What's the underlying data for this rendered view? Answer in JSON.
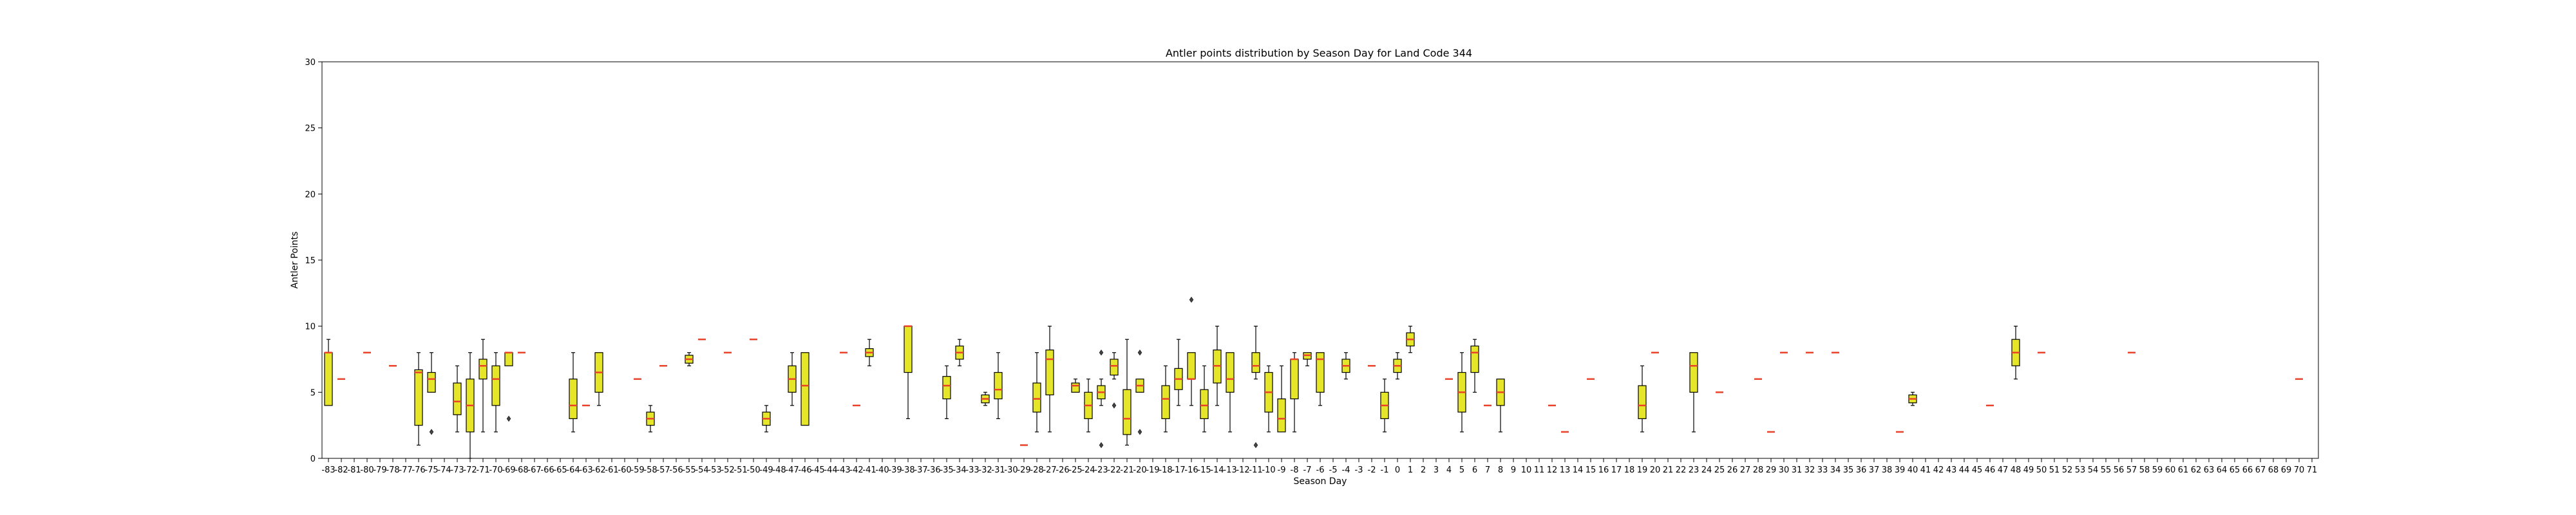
{
  "chart_data": {
    "type": "box",
    "title": "Antler points distribution by Season Day for Land Code 344",
    "xlabel": "Season Day",
    "ylabel": "Antler Points",
    "ylim": [
      0,
      30
    ],
    "yticks": [
      0,
      5,
      10,
      15,
      20,
      25,
      30
    ],
    "grid": false,
    "box_color": "#e5e52a",
    "median_color": "#e8432a",
    "outline_color": "#000000",
    "categories": [
      "-83",
      "-82",
      "-81",
      "-80",
      "-79",
      "-78",
      "-77",
      "-76",
      "-75",
      "-74",
      "-73",
      "-72",
      "-71",
      "-70",
      "-69",
      "-68",
      "-67",
      "-66",
      "-65",
      "-64",
      "-63",
      "-62",
      "-61",
      "-60",
      "-59",
      "-58",
      "-57",
      "-56",
      "-55",
      "-54",
      "-53",
      "-52",
      "-51",
      "-50",
      "-49",
      "-48",
      "-47",
      "-46",
      "-45",
      "-44",
      "-43",
      "-42",
      "-41",
      "-40",
      "-39",
      "-38",
      "-37",
      "-36",
      "-35",
      "-34",
      "-33",
      "-32",
      "-31",
      "-30",
      "-29",
      "-28",
      "-27",
      "-26",
      "-25",
      "-24",
      "-23",
      "-22",
      "-21",
      "-20",
      "-19",
      "-18",
      "-17",
      "-16",
      "-15",
      "-14",
      "-13",
      "-12",
      "-11",
      "-10",
      "-9",
      "-8",
      "-7",
      "-6",
      "-5",
      "-4",
      "-3",
      "-2",
      "-1",
      "0",
      "1",
      "2",
      "3",
      "4",
      "5",
      "6",
      "7",
      "8",
      "9",
      "10",
      "11",
      "12",
      "13",
      "14",
      "15",
      "16",
      "17",
      "18",
      "19",
      "20",
      "21",
      "22",
      "23",
      "24",
      "25",
      "26",
      "27",
      "28",
      "29",
      "30",
      "31",
      "32",
      "33",
      "34",
      "35",
      "36",
      "37",
      "38",
      "39",
      "40",
      "41",
      "42",
      "43",
      "44",
      "45",
      "46",
      "47",
      "48",
      "49",
      "50",
      "51",
      "52",
      "53",
      "54",
      "55",
      "56",
      "57",
      "58",
      "59",
      "60",
      "61",
      "62",
      "63",
      "64",
      "65",
      "66",
      "67",
      "68",
      "69",
      "70",
      "71"
    ],
    "boxes": [
      {
        "x": "-83",
        "q1": 4,
        "median": 8,
        "q3": 8,
        "whislo": 4,
        "whishi": 9,
        "fliers": []
      },
      {
        "x": "-82",
        "q1": 6,
        "median": 6,
        "q3": 6,
        "whislo": 6,
        "whishi": 6,
        "fliers": []
      },
      {
        "x": "-80",
        "q1": 8,
        "median": 8,
        "q3": 8,
        "whislo": 8,
        "whishi": 8,
        "fliers": []
      },
      {
        "x": "-78",
        "q1": 7,
        "median": 7,
        "q3": 7,
        "whislo": 7,
        "whishi": 7,
        "fliers": []
      },
      {
        "x": "-76",
        "q1": 2.5,
        "median": 6.5,
        "q3": 6.7,
        "whislo": 1,
        "whishi": 8,
        "fliers": []
      },
      {
        "x": "-75",
        "q1": 5,
        "median": 6,
        "q3": 6.5,
        "whislo": 5,
        "whishi": 8,
        "fliers": [
          2
        ]
      },
      {
        "x": "-73",
        "q1": 3.3,
        "median": 4.3,
        "q3": 5.7,
        "whislo": 2,
        "whishi": 7,
        "fliers": []
      },
      {
        "x": "-72",
        "q1": 2,
        "median": 4,
        "q3": 6,
        "whislo": 0,
        "whishi": 8,
        "fliers": []
      },
      {
        "x": "-71",
        "q1": 6,
        "median": 7,
        "q3": 7.5,
        "whislo": 2,
        "whishi": 9,
        "fliers": []
      },
      {
        "x": "-70",
        "q1": 4,
        "median": 6,
        "q3": 7,
        "whislo": 2,
        "whishi": 8,
        "fliers": []
      },
      {
        "x": "-69",
        "q1": 7,
        "median": 8,
        "q3": 8,
        "whislo": 7,
        "whishi": 8,
        "fliers": [
          3
        ]
      },
      {
        "x": "-68",
        "q1": 8,
        "median": 8,
        "q3": 8,
        "whislo": 8,
        "whishi": 8,
        "fliers": []
      },
      {
        "x": "-64",
        "q1": 3,
        "median": 4,
        "q3": 6,
        "whislo": 2,
        "whishi": 8,
        "fliers": []
      },
      {
        "x": "-63",
        "q1": 4,
        "median": 4,
        "q3": 4,
        "whislo": 4,
        "whishi": 4,
        "fliers": []
      },
      {
        "x": "-62",
        "q1": 5,
        "median": 6.5,
        "q3": 8,
        "whislo": 4,
        "whishi": 8,
        "fliers": []
      },
      {
        "x": "-59",
        "q1": 6,
        "median": 6,
        "q3": 6,
        "whislo": 6,
        "whishi": 6,
        "fliers": []
      },
      {
        "x": "-58",
        "q1": 2.5,
        "median": 3,
        "q3": 3.5,
        "whislo": 2,
        "whishi": 4,
        "fliers": []
      },
      {
        "x": "-57",
        "q1": 7,
        "median": 7,
        "q3": 7,
        "whislo": 7,
        "whishi": 7,
        "fliers": []
      },
      {
        "x": "-55",
        "q1": 7.2,
        "median": 7.5,
        "q3": 7.8,
        "whislo": 7,
        "whishi": 8,
        "fliers": []
      },
      {
        "x": "-54",
        "q1": 9,
        "median": 9,
        "q3": 9,
        "whislo": 9,
        "whishi": 9,
        "fliers": []
      },
      {
        "x": "-52",
        "q1": 8,
        "median": 8,
        "q3": 8,
        "whislo": 8,
        "whishi": 8,
        "fliers": []
      },
      {
        "x": "-50",
        "q1": 9,
        "median": 9,
        "q3": 9,
        "whislo": 9,
        "whishi": 9,
        "fliers": []
      },
      {
        "x": "-49",
        "q1": 2.5,
        "median": 3,
        "q3": 3.5,
        "whislo": 2,
        "whishi": 4,
        "fliers": []
      },
      {
        "x": "-47",
        "q1": 5,
        "median": 6,
        "q3": 7,
        "whislo": 4,
        "whishi": 8,
        "fliers": []
      },
      {
        "x": "-46",
        "q1": 2.5,
        "median": 5.5,
        "q3": 8,
        "whislo": 2.5,
        "whishi": 8,
        "fliers": []
      },
      {
        "x": "-43",
        "q1": 8,
        "median": 8,
        "q3": 8,
        "whislo": 8,
        "whishi": 8,
        "fliers": []
      },
      {
        "x": "-42",
        "q1": 4,
        "median": 4,
        "q3": 4,
        "whislo": 4,
        "whishi": 4,
        "fliers": []
      },
      {
        "x": "-41",
        "q1": 7.7,
        "median": 8,
        "q3": 8.3,
        "whislo": 7,
        "whishi": 9,
        "fliers": []
      },
      {
        "x": "-38",
        "q1": 6.5,
        "median": 10,
        "q3": 10,
        "whislo": 3,
        "whishi": 10,
        "fliers": []
      },
      {
        "x": "-35",
        "q1": 4.5,
        "median": 5.5,
        "q3": 6.2,
        "whislo": 3,
        "whishi": 7,
        "fliers": []
      },
      {
        "x": "-34",
        "q1": 7.5,
        "median": 8,
        "q3": 8.5,
        "whislo": 7,
        "whishi": 9,
        "fliers": []
      },
      {
        "x": "-32",
        "q1": 4.2,
        "median": 4.5,
        "q3": 4.8,
        "whislo": 4,
        "whishi": 5,
        "fliers": []
      },
      {
        "x": "-31",
        "q1": 4.5,
        "median": 5.2,
        "q3": 6.5,
        "whislo": 3,
        "whishi": 8,
        "fliers": []
      },
      {
        "x": "-29",
        "q1": 1,
        "median": 1,
        "q3": 1,
        "whislo": 1,
        "whishi": 1,
        "fliers": []
      },
      {
        "x": "-28",
        "q1": 3.5,
        "median": 4.5,
        "q3": 5.7,
        "whislo": 2,
        "whishi": 8,
        "fliers": []
      },
      {
        "x": "-27",
        "q1": 4.8,
        "median": 7.5,
        "q3": 8.2,
        "whislo": 2,
        "whishi": 10,
        "fliers": []
      },
      {
        "x": "-25",
        "q1": 5,
        "median": 5.5,
        "q3": 5.7,
        "whislo": 5,
        "whishi": 6,
        "fliers": []
      },
      {
        "x": "-24",
        "q1": 3,
        "median": 4,
        "q3": 5,
        "whislo": 2,
        "whishi": 6,
        "fliers": []
      },
      {
        "x": "-23",
        "q1": 4.5,
        "median": 5,
        "q3": 5.5,
        "whislo": 4,
        "whishi": 6,
        "fliers": [
          8,
          1
        ]
      },
      {
        "x": "-22",
        "q1": 6.3,
        "median": 7,
        "q3": 7.5,
        "whislo": 6,
        "whishi": 8,
        "fliers": [
          4
        ]
      },
      {
        "x": "-21",
        "q1": 1.8,
        "median": 3,
        "q3": 5.2,
        "whislo": 1,
        "whishi": 9,
        "fliers": []
      },
      {
        "x": "-20",
        "q1": 5,
        "median": 5.5,
        "q3": 6,
        "whislo": 5,
        "whishi": 6,
        "fliers": [
          8,
          2
        ]
      },
      {
        "x": "-18",
        "q1": 3,
        "median": 4.5,
        "q3": 5.5,
        "whislo": 2,
        "whishi": 7,
        "fliers": []
      },
      {
        "x": "-17",
        "q1": 5.2,
        "median": 6,
        "q3": 6.8,
        "whislo": 4,
        "whishi": 9,
        "fliers": []
      },
      {
        "x": "-16",
        "q1": 6,
        "median": 6,
        "q3": 8,
        "whislo": 4,
        "whishi": 8,
        "fliers": [
          12
        ]
      },
      {
        "x": "-15",
        "q1": 3,
        "median": 4,
        "q3": 5.2,
        "whislo": 2,
        "whishi": 7,
        "fliers": []
      },
      {
        "x": "-14",
        "q1": 5.7,
        "median": 7,
        "q3": 8.2,
        "whislo": 4,
        "whishi": 10,
        "fliers": []
      },
      {
        "x": "-13",
        "q1": 5,
        "median": 6,
        "q3": 8,
        "whislo": 2,
        "whishi": 8,
        "fliers": []
      },
      {
        "x": "-11",
        "q1": 6.5,
        "median": 7,
        "q3": 8,
        "whislo": 6,
        "whishi": 10,
        "fliers": [
          1
        ]
      },
      {
        "x": "-10",
        "q1": 3.5,
        "median": 5,
        "q3": 6.5,
        "whislo": 2,
        "whishi": 7,
        "fliers": []
      },
      {
        "x": "-9",
        "q1": 2,
        "median": 3,
        "q3": 4.5,
        "whislo": 2,
        "whishi": 7,
        "fliers": []
      },
      {
        "x": "-8",
        "q1": 4.5,
        "median": 7.5,
        "q3": 7.5,
        "whislo": 2,
        "whishi": 8,
        "fliers": []
      },
      {
        "x": "-7",
        "q1": 7.5,
        "median": 7.8,
        "q3": 8,
        "whislo": 7,
        "whishi": 8,
        "fliers": []
      },
      {
        "x": "-6",
        "q1": 5,
        "median": 7.5,
        "q3": 8,
        "whislo": 4,
        "whishi": 8,
        "fliers": []
      },
      {
        "x": "-4",
        "q1": 6.5,
        "median": 7,
        "q3": 7.5,
        "whislo": 6,
        "whishi": 8,
        "fliers": []
      },
      {
        "x": "-2",
        "q1": 7,
        "median": 7,
        "q3": 7,
        "whislo": 7,
        "whishi": 7,
        "fliers": []
      },
      {
        "x": "-1",
        "q1": 3,
        "median": 4,
        "q3": 5,
        "whislo": 2,
        "whishi": 6,
        "fliers": []
      },
      {
        "x": "0",
        "q1": 6.5,
        "median": 7,
        "q3": 7.5,
        "whislo": 6,
        "whishi": 8,
        "fliers": []
      },
      {
        "x": "1",
        "q1": 8.5,
        "median": 9,
        "q3": 9.5,
        "whislo": 8,
        "whishi": 10,
        "fliers": []
      },
      {
        "x": "4",
        "q1": 6,
        "median": 6,
        "q3": 6,
        "whislo": 6,
        "whishi": 6,
        "fliers": []
      },
      {
        "x": "5",
        "q1": 3.5,
        "median": 5,
        "q3": 6.5,
        "whislo": 2,
        "whishi": 8,
        "fliers": []
      },
      {
        "x": "6",
        "q1": 6.5,
        "median": 8,
        "q3": 8.5,
        "whislo": 5,
        "whishi": 9,
        "fliers": []
      },
      {
        "x": "7",
        "q1": 4,
        "median": 4,
        "q3": 4,
        "whislo": 4,
        "whishi": 4,
        "fliers": []
      },
      {
        "x": "8",
        "q1": 4,
        "median": 5,
        "q3": 6,
        "whislo": 2,
        "whishi": 6,
        "fliers": []
      },
      {
        "x": "12",
        "q1": 4,
        "median": 4,
        "q3": 4,
        "whislo": 4,
        "whishi": 4,
        "fliers": []
      },
      {
        "x": "13",
        "q1": 2,
        "median": 2,
        "q3": 2,
        "whislo": 2,
        "whishi": 2,
        "fliers": []
      },
      {
        "x": "15",
        "q1": 6,
        "median": 6,
        "q3": 6,
        "whislo": 6,
        "whishi": 6,
        "fliers": []
      },
      {
        "x": "19",
        "q1": 3,
        "median": 4,
        "q3": 5.5,
        "whislo": 2,
        "whishi": 7,
        "fliers": []
      },
      {
        "x": "20",
        "q1": 8,
        "median": 8,
        "q3": 8,
        "whislo": 8,
        "whishi": 8,
        "fliers": []
      },
      {
        "x": "23",
        "q1": 5,
        "median": 7,
        "q3": 8,
        "whislo": 2,
        "whishi": 8,
        "fliers": []
      },
      {
        "x": "25",
        "q1": 5,
        "median": 5,
        "q3": 5,
        "whislo": 5,
        "whishi": 5,
        "fliers": []
      },
      {
        "x": "28",
        "q1": 6,
        "median": 6,
        "q3": 6,
        "whislo": 6,
        "whishi": 6,
        "fliers": []
      },
      {
        "x": "29",
        "q1": 2,
        "median": 2,
        "q3": 2,
        "whislo": 2,
        "whishi": 2,
        "fliers": []
      },
      {
        "x": "30",
        "q1": 8,
        "median": 8,
        "q3": 8,
        "whislo": 8,
        "whishi": 8,
        "fliers": []
      },
      {
        "x": "32",
        "q1": 8,
        "median": 8,
        "q3": 8,
        "whislo": 8,
        "whishi": 8,
        "fliers": []
      },
      {
        "x": "34",
        "q1": 8,
        "median": 8,
        "q3": 8,
        "whislo": 8,
        "whishi": 8,
        "fliers": []
      },
      {
        "x": "39",
        "q1": 2,
        "median": 2,
        "q3": 2,
        "whislo": 2,
        "whishi": 2,
        "fliers": []
      },
      {
        "x": "40",
        "q1": 4.2,
        "median": 4.5,
        "q3": 4.8,
        "whislo": 4,
        "whishi": 5,
        "fliers": []
      },
      {
        "x": "46",
        "q1": 4,
        "median": 4,
        "q3": 4,
        "whislo": 4,
        "whishi": 4,
        "fliers": []
      },
      {
        "x": "48",
        "q1": 7,
        "median": 8,
        "q3": 9,
        "whislo": 6,
        "whishi": 10,
        "fliers": []
      },
      {
        "x": "50",
        "q1": 8,
        "median": 8,
        "q3": 8,
        "whislo": 8,
        "whishi": 8,
        "fliers": []
      },
      {
        "x": "57",
        "q1": 8,
        "median": 8,
        "q3": 8,
        "whislo": 8,
        "whishi": 8,
        "fliers": []
      },
      {
        "x": "70",
        "q1": 6,
        "median": 6,
        "q3": 6,
        "whislo": 6,
        "whishi": 6,
        "fliers": []
      }
    ]
  }
}
